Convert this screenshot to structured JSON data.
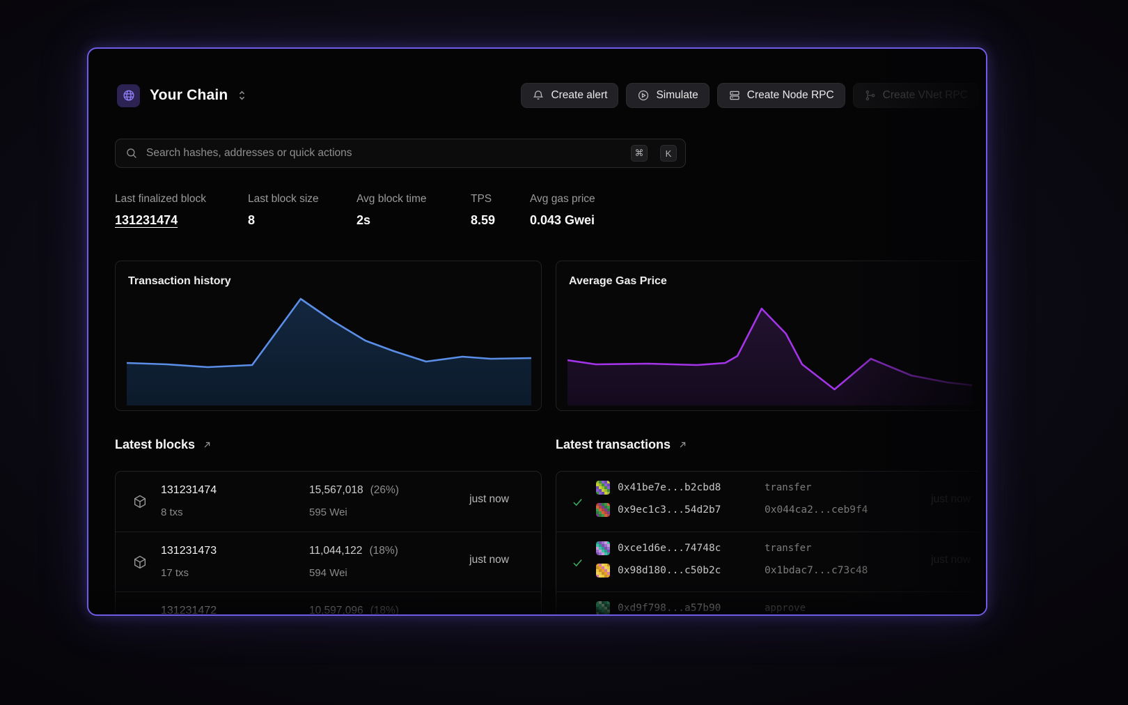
{
  "header": {
    "chain_name": "Your Chain",
    "actions": [
      {
        "label": "Create alert",
        "icon": "bell-icon"
      },
      {
        "label": "Simulate",
        "icon": "play-circle-icon"
      },
      {
        "label": "Create Node RPC",
        "icon": "server-stack-icon"
      },
      {
        "label": "Create VNet RPC",
        "icon": "branch-icon"
      }
    ]
  },
  "search": {
    "placeholder": "Search hashes, addresses or quick actions",
    "shortcut_keys": [
      "⌘",
      "K"
    ]
  },
  "stats": [
    {
      "label": "Last finalized block",
      "value": "131231474"
    },
    {
      "label": "Last block size",
      "value": "8"
    },
    {
      "label": "Avg block time",
      "value": "2s"
    },
    {
      "label": "TPS",
      "value": "8.59"
    },
    {
      "label": "Avg gas price",
      "value": "0.043 Gwei"
    }
  ],
  "chart_data": [
    {
      "type": "area",
      "title": "Transaction history",
      "series": [
        {
          "name": "transactions",
          "x": [
            0,
            10,
            20,
            31,
            43,
            51,
            59,
            66,
            74,
            83,
            90,
            100
          ],
          "y": [
            61,
            59,
            55,
            58,
            153,
            121,
            93,
            78,
            63,
            70,
            67,
            68
          ]
        }
      ],
      "ylim": [
        0,
        167
      ],
      "axes_hidden": true,
      "grid": false,
      "legend": false,
      "line_color": "#5b8ee6",
      "fill_top": "#13273f",
      "fill_bottom": "#0c1a2b"
    },
    {
      "type": "area",
      "title": "Average Gas Price",
      "series": [
        {
          "name": "gas_price",
          "x": [
            0,
            7,
            20,
            32,
            39,
            42,
            48,
            54,
            58,
            66,
            75,
            85,
            94,
            100
          ],
          "y": [
            65,
            59,
            60,
            58,
            61,
            71,
            139,
            103,
            59,
            23,
            67,
            43,
            33,
            29
          ]
        }
      ],
      "ylim": [
        0,
        167
      ],
      "axes_hidden": true,
      "grid": false,
      "legend": false,
      "line_color": "#a434e8",
      "fill_top": "#231230",
      "fill_bottom": "#140a1d"
    }
  ],
  "latest_blocks": {
    "title": "Latest blocks",
    "rows": [
      {
        "number": "131231474",
        "txs": "8 txs",
        "gas_used": "15,567,018",
        "gas_pct": "(26%)",
        "base_fee": "595 Wei",
        "time": "just now"
      },
      {
        "number": "131231473",
        "txs": "17 txs",
        "gas_used": "11,044,122",
        "gas_pct": "(18%)",
        "base_fee": "594 Wei",
        "time": "just now"
      },
      {
        "number": "131231472",
        "txs": "",
        "gas_used": "10,597,096",
        "gas_pct": "(18%)",
        "base_fee": "",
        "time": ""
      }
    ]
  },
  "latest_transactions": {
    "title": "Latest transactions",
    "rows": [
      {
        "from_hash": "0x41be7e...b2cbd8",
        "method": "transfer",
        "to_hash": "0x9ec1c3...54d2b7",
        "contract": "0x044ca2...ceb9f4",
        "time": "just now",
        "from_avatar": [
          "#9fb832",
          "#6b4fae",
          "#3f8f3f",
          "#c8cf3a",
          "#8a5fd0"
        ],
        "to_avatar": [
          "#b5463a",
          "#3f9a4e",
          "#7a3f8f",
          "#d0643a",
          "#2f7a3f"
        ]
      },
      {
        "from_hash": "0xce1d6e...74748c",
        "method": "transfer",
        "to_hash": "0x98d180...c50b2c",
        "contract": "0x1bdac7...c73c48",
        "time": "just now",
        "from_avatar": [
          "#2f9a8a",
          "#c79ad8",
          "#7a4fae",
          "#3fc0a8",
          "#9a6fd0"
        ],
        "to_avatar": [
          "#e8a229",
          "#e8c83a",
          "#d87aa0",
          "#c88f29",
          "#f0d060"
        ]
      },
      {
        "from_hash": "0xd9f798...a57b90",
        "method": "approve",
        "to_hash": "",
        "contract": "",
        "time": "",
        "from_avatar": [
          "#3fae6e",
          "#2f8f5f",
          "#a8d8b0",
          "#3fc98a",
          "#1f6f4a"
        ],
        "to_avatar": [
          "#3fae6e",
          "#2f8f5f",
          "#a8d8b0",
          "#3fc98a",
          "#1f6f4a"
        ]
      }
    ]
  },
  "colors": {
    "accent_purple": "#6e5ce6",
    "chart_blue": "#5b8ee6",
    "chart_purple": "#a434e8",
    "success_green": "#3fae5f"
  }
}
